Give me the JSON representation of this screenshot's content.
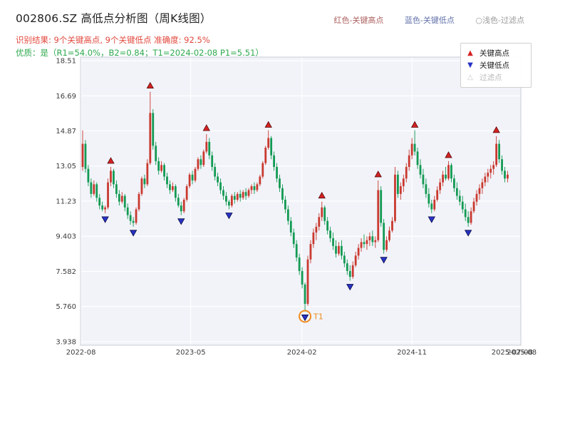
{
  "header": {
    "title": "002806.SZ 高低点分析图（周K线图）",
    "color_key": [
      {
        "label": "红色-关键高点",
        "color": "#ad6160"
      },
      {
        "label": "蓝色-关键低点",
        "color": "#6272aa"
      },
      {
        "label": "○浅色-过滤点",
        "color": "#9a9a9a"
      }
    ],
    "result_line": "识别结果: 9个关键高点, 9个关键低点  准确度: 92.5%",
    "quality_line": "优质：是（R1=54.0%，B2=0.84；T1=2024-02-08 P1=5.51）"
  },
  "legend_box": {
    "items": [
      {
        "label": "关键高点",
        "marker": "up-triangle",
        "color": "#d42222"
      },
      {
        "label": "关键低点",
        "marker": "down-triangle",
        "color": "#2733c4"
      },
      {
        "label": "过滤点",
        "marker": "up-triangle-outline",
        "color": "#c4c4c4"
      }
    ]
  },
  "chart_data": {
    "type": "candlestick",
    "symbol": "002806.SZ",
    "interval": "weekly",
    "start_date": "2022-08-05",
    "title": "002806.SZ 高低点分析图（周K线图）",
    "ylim": [
      3.75,
      18.7
    ],
    "grid": true,
    "plot_bg": "#f1f3f9",
    "grid_color": "#ffffff",
    "up_color": "#c9392f",
    "down_color": "#139a53",
    "key_high_color": "#d42222",
    "key_low_color": "#2733c4",
    "y_ticks": [
      "18.51",
      "16.69",
      "14.87",
      "13.05",
      "11.23",
      "9.403",
      "7.582",
      "5.760",
      "3.938"
    ],
    "x_ticks": [
      {
        "label": "2022-08",
        "week": -0.6,
        "grid": true
      },
      {
        "label": "2023-05",
        "week": 38.4,
        "grid": true
      },
      {
        "label": "2024-02",
        "week": 77.9,
        "grid": true
      },
      {
        "label": "2024-11",
        "week": 117.0,
        "grid": true
      },
      {
        "label": "2025-07-08",
        "week": 152.6,
        "grid": false
      },
      {
        "label": "2025-08",
        "week": 156.0,
        "grid": false
      }
    ],
    "candles": [
      [
        13.0,
        14.9,
        12.8,
        14.2
      ],
      [
        14.2,
        14.4,
        12.7,
        12.9
      ],
      [
        12.9,
        13.1,
        12.0,
        12.2
      ],
      [
        12.2,
        12.4,
        11.4,
        11.6
      ],
      [
        11.6,
        12.3,
        11.5,
        12.1
      ],
      [
        12.1,
        12.2,
        11.2,
        11.4
      ],
      [
        11.4,
        11.6,
        10.8,
        11.0
      ],
      [
        11.0,
        11.2,
        10.7,
        10.8
      ],
      [
        10.8,
        11.0,
        10.6,
        10.9
      ],
      [
        10.9,
        12.4,
        10.8,
        12.2
      ],
      [
        12.2,
        13.0,
        12.0,
        12.8
      ],
      [
        12.8,
        12.9,
        11.9,
        12.1
      ],
      [
        12.1,
        12.3,
        11.4,
        11.6
      ],
      [
        11.6,
        11.8,
        11.0,
        11.2
      ],
      [
        11.2,
        11.7,
        11.1,
        11.5
      ],
      [
        11.5,
        11.6,
        10.7,
        10.9
      ],
      [
        10.9,
        11.1,
        10.3,
        10.5
      ],
      [
        10.5,
        10.7,
        10.0,
        10.2
      ],
      [
        10.2,
        10.4,
        9.9,
        10.1
      ],
      [
        10.1,
        10.9,
        10.0,
        10.8
      ],
      [
        10.8,
        11.7,
        10.7,
        11.6
      ],
      [
        11.6,
        12.5,
        11.5,
        12.4
      ],
      [
        12.4,
        12.6,
        11.9,
        12.1
      ],
      [
        12.1,
        13.4,
        12.0,
        13.2
      ],
      [
        13.2,
        16.9,
        13.1,
        15.8
      ],
      [
        15.8,
        16.0,
        13.9,
        14.1
      ],
      [
        14.1,
        14.3,
        13.1,
        13.3
      ],
      [
        13.3,
        13.5,
        12.6,
        12.8
      ],
      [
        12.8,
        13.3,
        12.7,
        13.1
      ],
      [
        13.1,
        13.2,
        12.3,
        12.5
      ],
      [
        12.5,
        12.7,
        11.9,
        12.1
      ],
      [
        12.1,
        12.3,
        11.6,
        11.8
      ],
      [
        11.8,
        12.2,
        11.7,
        12.0
      ],
      [
        12.0,
        12.1,
        11.2,
        11.4
      ],
      [
        11.4,
        11.6,
        10.9,
        11.0
      ],
      [
        11.0,
        11.2,
        10.5,
        10.7
      ],
      [
        10.7,
        11.4,
        10.6,
        11.3
      ],
      [
        11.3,
        12.1,
        11.2,
        12.0
      ],
      [
        12.0,
        12.7,
        11.9,
        12.6
      ],
      [
        12.6,
        12.8,
        12.1,
        12.3
      ],
      [
        12.3,
        13.0,
        12.2,
        12.9
      ],
      [
        12.9,
        13.5,
        12.8,
        13.4
      ],
      [
        13.4,
        13.6,
        12.9,
        13.1
      ],
      [
        13.1,
        13.9,
        13.0,
        13.8
      ],
      [
        13.8,
        14.7,
        13.7,
        14.3
      ],
      [
        14.3,
        14.5,
        13.4,
        13.6
      ],
      [
        13.6,
        13.8,
        12.8,
        13.0
      ],
      [
        13.0,
        13.2,
        12.3,
        12.5
      ],
      [
        12.5,
        12.7,
        12.0,
        12.2
      ],
      [
        12.2,
        12.4,
        11.6,
        11.8
      ],
      [
        11.8,
        12.0,
        11.3,
        11.5
      ],
      [
        11.5,
        11.7,
        11.0,
        11.2
      ],
      [
        11.2,
        11.3,
        10.8,
        11.0
      ],
      [
        11.0,
        11.6,
        10.9,
        11.5
      ],
      [
        11.5,
        11.7,
        11.1,
        11.3
      ],
      [
        11.3,
        11.7,
        11.2,
        11.6
      ],
      [
        11.6,
        11.8,
        11.2,
        11.4
      ],
      [
        11.4,
        11.8,
        11.3,
        11.7
      ],
      [
        11.7,
        11.9,
        11.3,
        11.5
      ],
      [
        11.5,
        11.9,
        11.4,
        11.8
      ],
      [
        11.8,
        12.1,
        11.6,
        12.0
      ],
      [
        12.0,
        12.2,
        11.6,
        11.8
      ],
      [
        11.8,
        12.2,
        11.7,
        12.1
      ],
      [
        12.1,
        12.6,
        12.0,
        12.5
      ],
      [
        12.5,
        13.3,
        12.4,
        13.2
      ],
      [
        13.2,
        14.1,
        13.1,
        14.0
      ],
      [
        14.0,
        14.9,
        13.9,
        14.5
      ],
      [
        14.5,
        14.6,
        13.4,
        13.6
      ],
      [
        13.6,
        13.8,
        12.8,
        13.0
      ],
      [
        13.0,
        13.2,
        12.2,
        12.4
      ],
      [
        12.4,
        12.6,
        11.7,
        11.9
      ],
      [
        11.9,
        12.1,
        11.1,
        11.3
      ],
      [
        11.3,
        11.5,
        10.6,
        10.8
      ],
      [
        10.8,
        11.0,
        10.0,
        10.2
      ],
      [
        10.2,
        10.4,
        9.4,
        9.6
      ],
      [
        9.6,
        9.8,
        8.8,
        9.0
      ],
      [
        9.0,
        9.2,
        8.1,
        8.3
      ],
      [
        8.3,
        8.5,
        7.4,
        7.6
      ],
      [
        7.6,
        7.8,
        6.7,
        6.9
      ],
      [
        6.9,
        7.0,
        5.5,
        5.9
      ],
      [
        5.9,
        8.4,
        5.8,
        8.2
      ],
      [
        8.2,
        9.2,
        8.0,
        9.0
      ],
      [
        9.0,
        9.8,
        8.8,
        9.6
      ],
      [
        9.6,
        10.1,
        9.2,
        9.9
      ],
      [
        9.9,
        10.6,
        9.7,
        10.4
      ],
      [
        10.4,
        11.2,
        10.2,
        10.9
      ],
      [
        10.9,
        11.0,
        10.0,
        10.2
      ],
      [
        10.2,
        10.4,
        9.5,
        9.7
      ],
      [
        9.7,
        9.9,
        9.1,
        9.3
      ],
      [
        9.3,
        9.6,
        8.7,
        8.9
      ],
      [
        8.9,
        9.2,
        8.3,
        8.5
      ],
      [
        8.5,
        9.1,
        8.4,
        8.9
      ],
      [
        8.9,
        9.2,
        8.2,
        8.4
      ],
      [
        8.4,
        8.6,
        7.8,
        8.0
      ],
      [
        8.0,
        8.2,
        7.4,
        7.6
      ],
      [
        7.6,
        7.9,
        7.1,
        7.3
      ],
      [
        7.3,
        8.1,
        7.2,
        7.9
      ],
      [
        7.9,
        8.6,
        7.8,
        8.4
      ],
      [
        8.4,
        9.0,
        8.2,
        8.8
      ],
      [
        8.8,
        9.3,
        8.6,
        9.1
      ],
      [
        9.1,
        9.5,
        8.8,
        9.0
      ],
      [
        9.0,
        9.4,
        8.7,
        9.2
      ],
      [
        9.2,
        9.6,
        8.9,
        9.4
      ],
      [
        9.4,
        9.7,
        8.9,
        9.1
      ],
      [
        9.1,
        9.4,
        8.8,
        9.2
      ],
      [
        9.2,
        12.3,
        9.1,
        11.8
      ],
      [
        11.8,
        12.0,
        9.9,
        10.1
      ],
      [
        10.1,
        10.3,
        8.5,
        8.7
      ],
      [
        8.7,
        9.4,
        8.6,
        9.2
      ],
      [
        9.2,
        9.9,
        9.1,
        9.7
      ],
      [
        9.7,
        10.4,
        9.6,
        10.2
      ],
      [
        10.2,
        13.0,
        10.1,
        12.6
      ],
      [
        12.6,
        12.8,
        11.4,
        11.6
      ],
      [
        11.6,
        12.2,
        11.3,
        12.0
      ],
      [
        12.0,
        12.6,
        11.7,
        12.4
      ],
      [
        12.4,
        13.2,
        12.2,
        13.0
      ],
      [
        13.0,
        13.9,
        12.8,
        13.6
      ],
      [
        13.6,
        14.5,
        13.4,
        14.2
      ],
      [
        14.2,
        14.9,
        13.6,
        13.8
      ],
      [
        13.8,
        14.0,
        12.9,
        13.1
      ],
      [
        13.1,
        13.4,
        12.4,
        12.6
      ],
      [
        12.6,
        12.9,
        11.9,
        12.1
      ],
      [
        12.1,
        12.4,
        11.4,
        11.6
      ],
      [
        11.6,
        11.9,
        10.9,
        11.1
      ],
      [
        11.1,
        11.3,
        10.6,
        10.8
      ],
      [
        10.8,
        11.5,
        10.7,
        11.3
      ],
      [
        11.3,
        12.0,
        11.2,
        11.8
      ],
      [
        11.8,
        12.4,
        11.6,
        12.2
      ],
      [
        12.2,
        12.8,
        12.0,
        12.6
      ],
      [
        12.6,
        13.0,
        12.3,
        12.4
      ],
      [
        12.4,
        13.3,
        12.3,
        13.1
      ],
      [
        13.1,
        13.2,
        12.2,
        12.4
      ],
      [
        12.4,
        12.6,
        11.7,
        11.9
      ],
      [
        11.9,
        12.2,
        11.3,
        11.5
      ],
      [
        11.5,
        11.8,
        11.0,
        11.2
      ],
      [
        11.2,
        11.5,
        10.6,
        10.8
      ],
      [
        10.8,
        11.1,
        10.2,
        10.4
      ],
      [
        10.4,
        10.7,
        9.9,
        10.1
      ],
      [
        10.1,
        10.9,
        10.0,
        10.7
      ],
      [
        10.7,
        11.4,
        10.6,
        11.2
      ],
      [
        11.2,
        11.8,
        11.0,
        11.6
      ],
      [
        11.6,
        12.1,
        11.3,
        11.9
      ],
      [
        11.9,
        12.4,
        11.6,
        12.2
      ],
      [
        12.2,
        12.7,
        12.0,
        12.5
      ],
      [
        12.5,
        12.9,
        12.2,
        12.7
      ],
      [
        12.7,
        13.1,
        12.4,
        12.9
      ],
      [
        12.9,
        13.3,
        12.6,
        13.1
      ],
      [
        13.1,
        14.6,
        13.0,
        14.2
      ],
      [
        14.2,
        14.4,
        13.2,
        13.4
      ],
      [
        13.4,
        13.6,
        12.6,
        12.8
      ],
      [
        12.8,
        13.0,
        12.2,
        12.4
      ],
      [
        12.4,
        12.8,
        12.2,
        12.6
      ]
    ],
    "key_highs": [
      {
        "week": 10,
        "price": 13.0
      },
      {
        "week": 24,
        "price": 16.9
      },
      {
        "week": 44,
        "price": 14.7
      },
      {
        "week": 66,
        "price": 14.87
      },
      {
        "week": 85,
        "price": 11.2
      },
      {
        "week": 105,
        "price": 12.3
      },
      {
        "week": 118,
        "price": 14.87
      },
      {
        "week": 130,
        "price": 13.3
      },
      {
        "week": 147,
        "price": 14.6
      }
    ],
    "key_lows": [
      {
        "week": 8,
        "price": 10.6
      },
      {
        "week": 18,
        "price": 9.9
      },
      {
        "week": 35,
        "price": 10.5
      },
      {
        "week": 52,
        "price": 10.8
      },
      {
        "week": 79,
        "price": 5.51
      },
      {
        "week": 95,
        "price": 7.1
      },
      {
        "week": 107,
        "price": 8.5
      },
      {
        "week": 124,
        "price": 10.6
      },
      {
        "week": 137,
        "price": 9.9
      }
    ],
    "annotation": {
      "label": "T1",
      "week": 79,
      "price": 5.51,
      "date": "2024-02-08",
      "color": "#f08c1e"
    }
  }
}
